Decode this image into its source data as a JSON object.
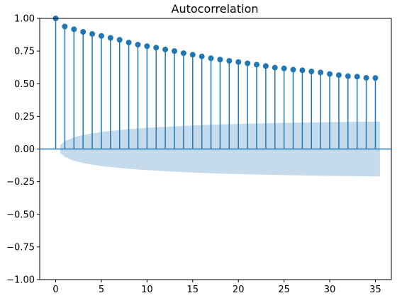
{
  "chart_data": {
    "type": "stem",
    "title": "Autocorrelation",
    "xlabel": "",
    "ylabel": "",
    "xlim": [
      -1.75,
      36.75
    ],
    "ylim": [
      -1.0,
      1.0
    ],
    "xticks": [
      0,
      5,
      10,
      15,
      20,
      25,
      30,
      35
    ],
    "yticks": [
      -1.0,
      -0.75,
      -0.5,
      -0.25,
      0.0,
      0.25,
      0.5,
      0.75,
      1.0
    ],
    "ytick_labels": [
      "−1.00",
      "−0.75",
      "−0.50",
      "−0.25",
      "0.00",
      "0.25",
      "0.50",
      "0.75",
      "1.00"
    ],
    "xtick_labels": [
      "0",
      "5",
      "10",
      "15",
      "20",
      "25",
      "30",
      "35"
    ],
    "grid": false,
    "colors": {
      "stem": "#1f77b4",
      "confidence_band": "#c5daeb",
      "zero_line": "#1f77b4"
    },
    "lags": [
      0,
      1,
      2,
      3,
      4,
      5,
      6,
      7,
      8,
      9,
      10,
      11,
      12,
      13,
      14,
      15,
      16,
      17,
      18,
      19,
      20,
      21,
      22,
      23,
      24,
      25,
      26,
      27,
      28,
      29,
      30,
      31,
      32,
      33,
      34,
      35
    ],
    "values": [
      1.0,
      0.938,
      0.917,
      0.897,
      0.881,
      0.866,
      0.851,
      0.836,
      0.815,
      0.799,
      0.787,
      0.776,
      0.762,
      0.75,
      0.734,
      0.722,
      0.709,
      0.695,
      0.685,
      0.675,
      0.666,
      0.656,
      0.646,
      0.635,
      0.623,
      0.617,
      0.608,
      0.603,
      0.594,
      0.586,
      0.574,
      0.566,
      0.558,
      0.554,
      0.545,
      0.544
    ],
    "confidence_band": {
      "x": [
        0.5,
        1,
        2,
        3,
        4,
        5,
        6,
        7,
        8,
        10,
        12,
        15,
        18,
        21,
        25,
        30,
        35.5
      ],
      "upper": [
        0.03,
        0.06,
        0.09,
        0.107,
        0.12,
        0.131,
        0.138,
        0.145,
        0.152,
        0.162,
        0.17,
        0.18,
        0.188,
        0.194,
        0.2,
        0.206,
        0.21
      ],
      "lower": [
        -0.03,
        -0.06,
        -0.09,
        -0.107,
        -0.12,
        -0.131,
        -0.138,
        -0.145,
        -0.152,
        -0.162,
        -0.17,
        -0.18,
        -0.188,
        -0.194,
        -0.2,
        -0.206,
        -0.21
      ]
    }
  }
}
